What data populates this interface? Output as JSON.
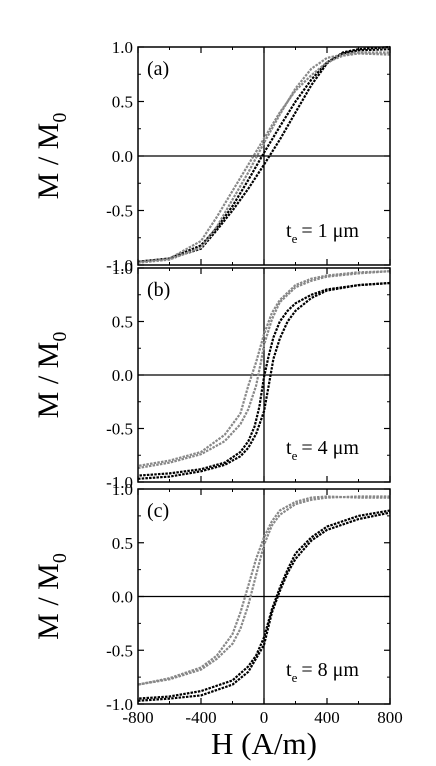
{
  "chart_data": [
    {
      "type": "line",
      "panel_label": "(a)",
      "annotation": {
        "var": "t",
        "sub": "e",
        "rest": "= 1 μm"
      },
      "ylabel": {
        "main": "M / M",
        "sub": "0"
      },
      "xlabel": "",
      "xlim": [
        -800,
        800
      ],
      "ylim": [
        -1.0,
        1.0
      ],
      "xticks": [
        "-800",
        "-400",
        "0",
        "400",
        "800"
      ],
      "yticks": [
        "-1.0",
        "-0.5",
        "0.0",
        "0.5",
        "1.0"
      ],
      "show_xtick_labels": false,
      "zero_lines": true,
      "series": [
        {
          "color": "#000000",
          "x": [
            -800,
            -600,
            -400,
            -300,
            -200,
            -100,
            0,
            100,
            200,
            300,
            400,
            500,
            600,
            800
          ],
          "y": [
            -0.97,
            -0.94,
            -0.85,
            -0.68,
            -0.5,
            -0.3,
            -0.08,
            0.15,
            0.4,
            0.65,
            0.85,
            0.95,
            0.98,
            1.0
          ]
        },
        {
          "color": "#000000",
          "x": [
            800,
            600,
            500,
            400,
            300,
            200,
            100,
            0,
            -100,
            -200,
            -300,
            -400,
            -600,
            -800
          ],
          "y": [
            0.98,
            0.97,
            0.94,
            0.86,
            0.7,
            0.5,
            0.27,
            0.03,
            -0.22,
            -0.46,
            -0.66,
            -0.82,
            -0.94,
            -0.97
          ]
        },
        {
          "color": "#888888",
          "x": [
            -800,
            -600,
            -400,
            -300,
            -200,
            -100,
            0,
            100,
            200,
            300,
            400,
            500,
            600,
            800
          ],
          "y": [
            -0.98,
            -0.95,
            -0.84,
            -0.65,
            -0.4,
            -0.15,
            0.12,
            0.38,
            0.62,
            0.8,
            0.9,
            0.93,
            0.95,
            0.95
          ]
        },
        {
          "color": "#888888",
          "x": [
            800,
            600,
            500,
            400,
            300,
            200,
            100,
            0,
            -100,
            -200,
            -300,
            -400,
            -600,
            -800
          ],
          "y": [
            0.93,
            0.94,
            0.92,
            0.86,
            0.74,
            0.6,
            0.4,
            0.16,
            -0.08,
            -0.32,
            -0.56,
            -0.78,
            -0.94,
            -0.97
          ]
        }
      ]
    },
    {
      "type": "line",
      "panel_label": "(b)",
      "annotation": {
        "var": "t",
        "sub": "e",
        "rest": "= 4 μm"
      },
      "ylabel": {
        "main": "M / M",
        "sub": "0"
      },
      "xlabel": "",
      "xlim": [
        -800,
        800
      ],
      "ylim": [
        -1.0,
        1.0
      ],
      "xticks": [
        "-800",
        "-400",
        "0",
        "400",
        "800"
      ],
      "yticks": [
        "-1.0",
        "-0.5",
        "0.0",
        "0.5",
        "1.0"
      ],
      "show_xtick_labels": false,
      "zero_lines": true,
      "series": [
        {
          "color": "#000000",
          "x": [
            -800,
            -600,
            -400,
            -250,
            -150,
            -100,
            -50,
            0,
            30,
            60,
            100,
            150,
            200,
            300,
            400,
            600,
            800
          ],
          "y": [
            -0.97,
            -0.95,
            -0.9,
            -0.84,
            -0.76,
            -0.68,
            -0.55,
            -0.34,
            -0.1,
            0.15,
            0.34,
            0.5,
            0.6,
            0.72,
            0.79,
            0.84,
            0.86
          ]
        },
        {
          "color": "#000000",
          "x": [
            800,
            600,
            400,
            300,
            200,
            150,
            100,
            60,
            30,
            0,
            -30,
            -60,
            -100,
            -150,
            -250,
            -400,
            -600,
            -800
          ],
          "y": [
            0.86,
            0.84,
            0.8,
            0.75,
            0.67,
            0.6,
            0.5,
            0.35,
            0.18,
            -0.02,
            -0.3,
            -0.48,
            -0.62,
            -0.72,
            -0.82,
            -0.88,
            -0.92,
            -0.94
          ]
        },
        {
          "color": "#888888",
          "x": [
            -800,
            -600,
            -400,
            -250,
            -150,
            -100,
            -50,
            -20,
            0,
            50,
            100,
            200,
            300,
            400,
            600,
            800
          ],
          "y": [
            -0.87,
            -0.82,
            -0.74,
            -0.62,
            -0.46,
            -0.32,
            -0.1,
            0.12,
            0.28,
            0.52,
            0.68,
            0.82,
            0.88,
            0.92,
            0.95,
            0.97
          ]
        },
        {
          "color": "#888888",
          "x": [
            800,
            600,
            400,
            300,
            200,
            100,
            50,
            0,
            -50,
            -100,
            -150,
            -250,
            -400,
            -600,
            -800
          ],
          "y": [
            0.97,
            0.96,
            0.93,
            0.9,
            0.84,
            0.7,
            0.58,
            0.38,
            0.12,
            -0.1,
            -0.36,
            -0.56,
            -0.72,
            -0.8,
            -0.85
          ]
        }
      ]
    },
    {
      "type": "line",
      "panel_label": "(c)",
      "annotation": {
        "var": "t",
        "sub": "e",
        "rest": "= 8 μm"
      },
      "ylabel": {
        "main": "M / M",
        "sub": "0"
      },
      "xlabel": "H (A/m)",
      "xlim": [
        -800,
        800
      ],
      "ylim": [
        -1.0,
        1.0
      ],
      "xticks": [
        "-800",
        "-400",
        "0",
        "400",
        "800"
      ],
      "yticks": [
        "-1.0",
        "-0.5",
        "0.0",
        "0.5",
        "1.0"
      ],
      "show_xtick_labels": true,
      "zero_lines": true,
      "series": [
        {
          "color": "#000000",
          "x": [
            -800,
            -600,
            -400,
            -200,
            -100,
            0,
            50,
            100,
            150,
            200,
            300,
            400,
            600,
            800
          ],
          "y": [
            -0.97,
            -0.95,
            -0.92,
            -0.82,
            -0.7,
            -0.45,
            -0.15,
            0.05,
            0.22,
            0.35,
            0.52,
            0.62,
            0.72,
            0.78
          ]
        },
        {
          "color": "#000000",
          "x": [
            800,
            600,
            400,
            300,
            200,
            150,
            100,
            50,
            0,
            -50,
            -100,
            -200,
            -400,
            -600,
            -800
          ],
          "y": [
            0.8,
            0.75,
            0.65,
            0.55,
            0.4,
            0.25,
            0.08,
            -0.12,
            -0.38,
            -0.55,
            -0.65,
            -0.78,
            -0.88,
            -0.93,
            -0.95
          ]
        },
        {
          "color": "#888888",
          "x": [
            -800,
            -600,
            -400,
            -300,
            -200,
            -150,
            -100,
            -50,
            0,
            50,
            100,
            200,
            300,
            400,
            600,
            800
          ],
          "y": [
            -0.82,
            -0.76,
            -0.66,
            -0.55,
            -0.35,
            -0.15,
            0.1,
            0.35,
            0.55,
            0.7,
            0.8,
            0.88,
            0.92,
            0.93,
            0.92,
            0.92
          ]
        },
        {
          "color": "#888888",
          "x": [
            800,
            600,
            400,
            300,
            200,
            100,
            50,
            0,
            -50,
            -100,
            -150,
            -200,
            -300,
            -400,
            -600,
            -800
          ],
          "y": [
            0.93,
            0.93,
            0.92,
            0.9,
            0.86,
            0.76,
            0.66,
            0.48,
            0.2,
            -0.08,
            -0.3,
            -0.44,
            -0.58,
            -0.68,
            -0.77,
            -0.82
          ]
        }
      ]
    }
  ]
}
